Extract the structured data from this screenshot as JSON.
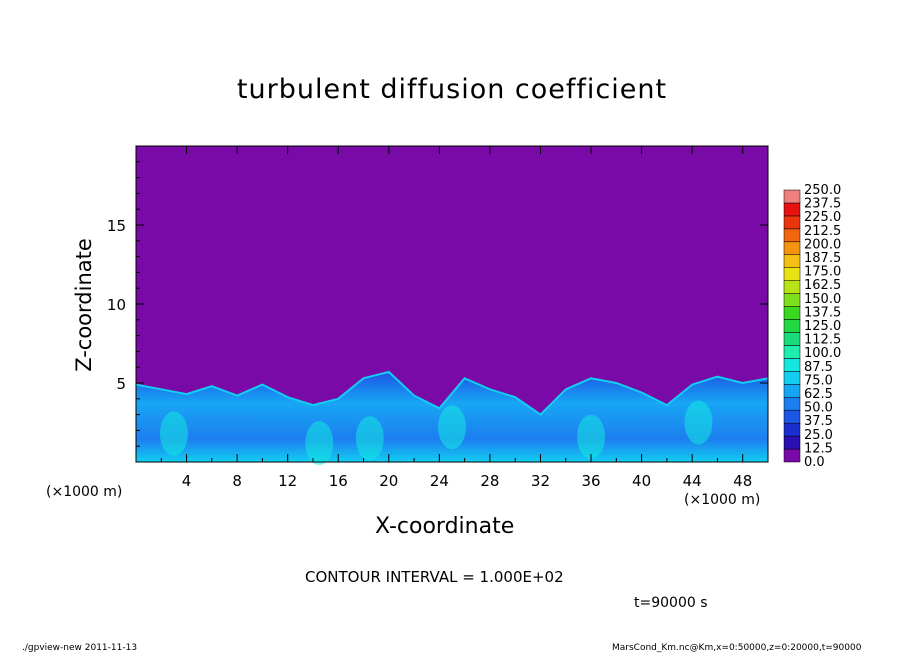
{
  "chart_data": {
    "type": "heatmap",
    "title": "turbulent diffusion coefficient",
    "xlabel": "X-coordinate",
    "ylabel": "Z-coordinate",
    "x_unit_label": "(×1000 m)",
    "xlim": [
      0,
      50
    ],
    "ylim": [
      0,
      20
    ],
    "x_ticks": [
      4,
      8,
      12,
      16,
      20,
      24,
      28,
      32,
      36,
      40,
      44,
      48
    ],
    "y_ticks": [
      5,
      10,
      15
    ],
    "colorbar_levels": [
      "0.0",
      "12.5",
      "25.0",
      "37.5",
      "50.0",
      "62.5",
      "75.0",
      "87.5",
      "100.0",
      "112.5",
      "125.0",
      "137.5",
      "150.0",
      "162.5",
      "175.0",
      "187.5",
      "200.0",
      "212.5",
      "225.0",
      "237.5",
      "250.0"
    ],
    "colorbar_colors": [
      "#7a0aa8",
      "#2b0fb4",
      "#1b2ed0",
      "#1d55e4",
      "#1d7ef0",
      "#17a6f4",
      "#12cff2",
      "#14e8de",
      "#1eedb0",
      "#1bdc7a",
      "#21d843",
      "#3ad81f",
      "#7ee01a",
      "#b8e416",
      "#e8e414",
      "#f4c013",
      "#f49410",
      "#f2660e",
      "#ec340d",
      "#e81010",
      "#f08080"
    ],
    "contour_interval_text": "CONTOUR INTERVAL = 1.000E+02",
    "time_text": "t=90000 s",
    "boundary_layer_top": [
      {
        "x": 0,
        "z": 4.9
      },
      {
        "x": 2,
        "z": 4.6
      },
      {
        "x": 4,
        "z": 4.3
      },
      {
        "x": 6,
        "z": 4.8
      },
      {
        "x": 8,
        "z": 4.2
      },
      {
        "x": 10,
        "z": 4.9
      },
      {
        "x": 12,
        "z": 4.1
      },
      {
        "x": 14,
        "z": 3.6
      },
      {
        "x": 16,
        "z": 4.0
      },
      {
        "x": 18,
        "z": 5.3
      },
      {
        "x": 20,
        "z": 5.7
      },
      {
        "x": 22,
        "z": 4.2
      },
      {
        "x": 24,
        "z": 3.4
      },
      {
        "x": 26,
        "z": 5.3
      },
      {
        "x": 28,
        "z": 4.6
      },
      {
        "x": 30,
        "z": 4.1
      },
      {
        "x": 32,
        "z": 3.0
      },
      {
        "x": 34,
        "z": 4.6
      },
      {
        "x": 36,
        "z": 5.3
      },
      {
        "x": 38,
        "z": 5.0
      },
      {
        "x": 40,
        "z": 4.4
      },
      {
        "x": 42,
        "z": 3.6
      },
      {
        "x": 44,
        "z": 4.9
      },
      {
        "x": 46,
        "z": 5.4
      },
      {
        "x": 48,
        "z": 5.0
      },
      {
        "x": 50,
        "z": 5.3
      }
    ]
  },
  "footer": {
    "left": "./gpview-new   2011-11-13",
    "right": "MarsCond_Km.nc@Km,x=0:50000,z=0:20000,t=90000"
  }
}
